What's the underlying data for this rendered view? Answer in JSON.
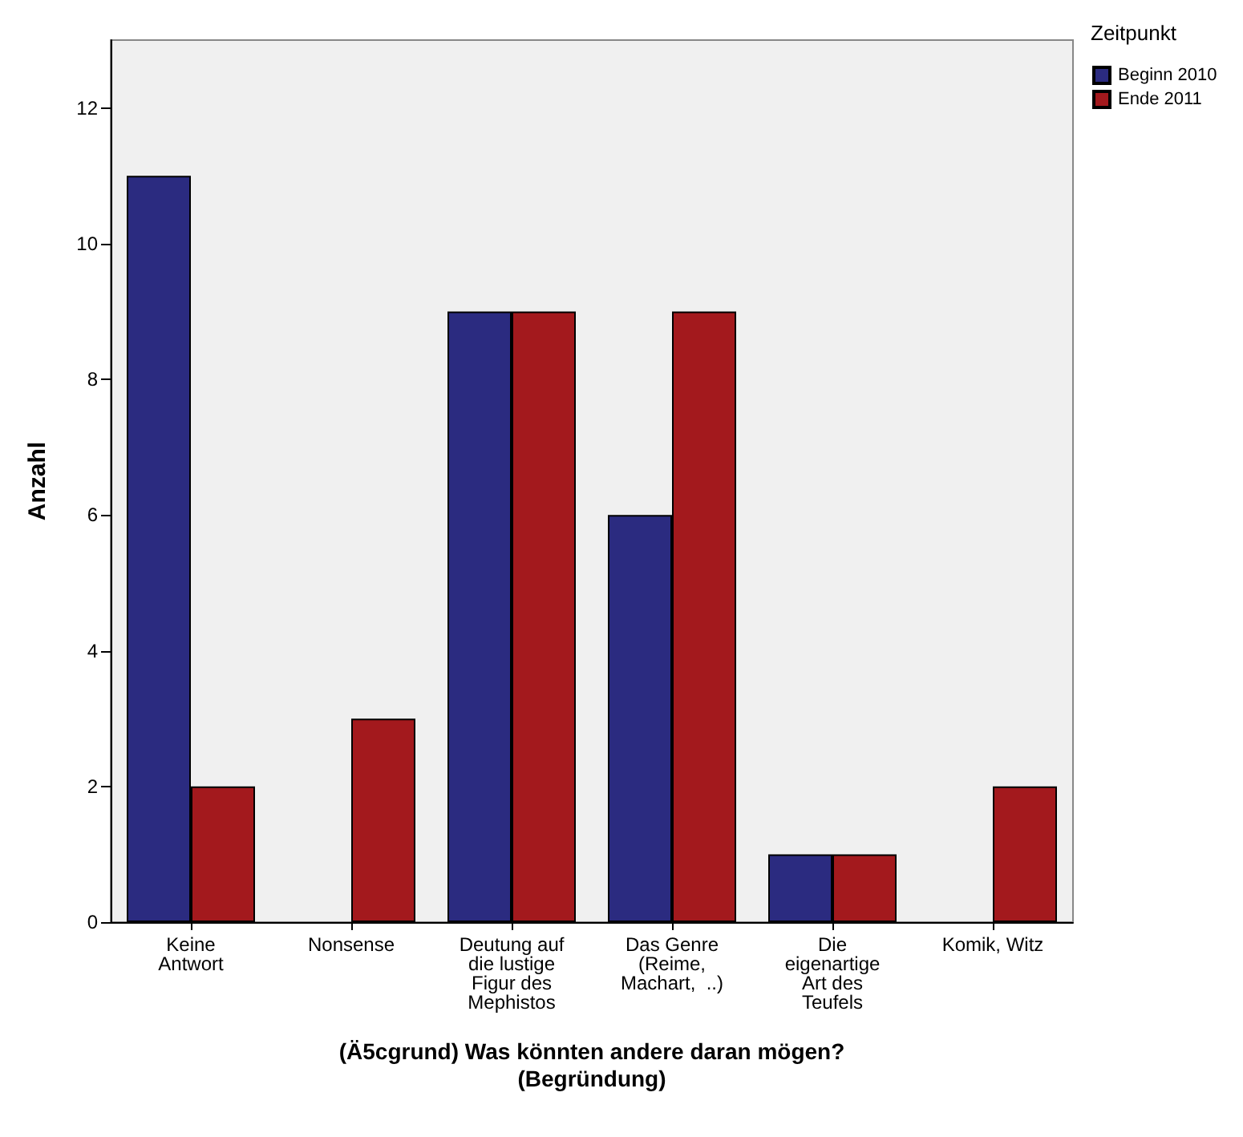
{
  "chart_data": {
    "type": "bar",
    "xlabel": "(Ä5cgrund) Was könnten andere daran mögen?\n(Begründung)",
    "ylabel": "Anzahl",
    "legend_title": "Zeitpunkt",
    "categories": [
      "Keine\nAntwort",
      "Nonsense",
      "Deutung auf\ndie lustige\nFigur des\nMephistos",
      "Das Genre\n(Reime,\nMachart,  ..)",
      "Die\neigenartige\nArt des\nTeufels",
      "Komik, Witz"
    ],
    "series": [
      {
        "name": "Beginn 2010",
        "color": "#2b2b80",
        "values": [
          11,
          null,
          9,
          6,
          1,
          null
        ]
      },
      {
        "name": "Ende 2011",
        "color": "#a3191d",
        "values": [
          2,
          3,
          9,
          9,
          1,
          2
        ]
      }
    ],
    "ylim": [
      0,
      13
    ],
    "yticks": [
      0,
      2,
      4,
      6,
      8,
      10,
      12
    ],
    "grid": false,
    "legend": "right"
  }
}
